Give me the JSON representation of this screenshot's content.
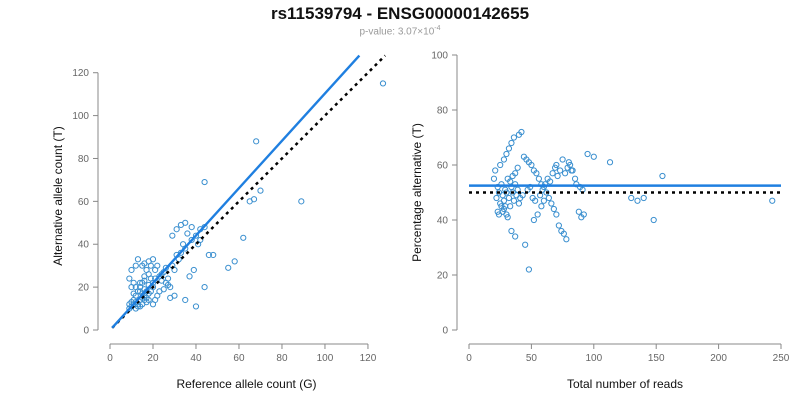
{
  "title": "rs11539794 - ENSG00000142655",
  "subtitle": {
    "prefix": "p-value: ",
    "mantissa": "3.07×10",
    "exponent": "-4"
  },
  "colors": {
    "points": "#3a8fcf",
    "fit_line": "#1f7fe0",
    "ref_line": "#000000",
    "axis": "#888888",
    "tick_text": "#666666"
  },
  "chart_data": [
    {
      "type": "scatter",
      "xlabel": "Reference allele count (G)",
      "ylabel": "Alternative allele count (T)",
      "xlim": [
        0,
        127
      ],
      "ylim": [
        0,
        125
      ],
      "xticks": [
        0,
        20,
        40,
        60,
        80,
        100,
        120
      ],
      "yticks": [
        0,
        20,
        40,
        60,
        80,
        100,
        120
      ],
      "fit_line": [
        [
          1,
          1
        ],
        [
          116,
          128
        ]
      ],
      "reference_line": [
        [
          1,
          1
        ],
        [
          128,
          128
        ]
      ],
      "points": [
        [
          9,
          10
        ],
        [
          10,
          11
        ],
        [
          11,
          12
        ],
        [
          12,
          13
        ],
        [
          13,
          11
        ],
        [
          14,
          14
        ],
        [
          15,
          15
        ],
        [
          16,
          16
        ],
        [
          17,
          15
        ],
        [
          18,
          17
        ],
        [
          15,
          17
        ],
        [
          14,
          18
        ],
        [
          16,
          19
        ],
        [
          17,
          18
        ],
        [
          19,
          18
        ],
        [
          20,
          20
        ],
        [
          16,
          14
        ],
        [
          15,
          12
        ],
        [
          13,
          12
        ],
        [
          12,
          10
        ],
        [
          11,
          14
        ],
        [
          10,
          13
        ],
        [
          9,
          12
        ],
        [
          12,
          16
        ],
        [
          13,
          18
        ],
        [
          14,
          20
        ],
        [
          15,
          22
        ],
        [
          16,
          25
        ],
        [
          17,
          28
        ],
        [
          18,
          26
        ],
        [
          19,
          24
        ],
        [
          20,
          22
        ],
        [
          21,
          28
        ],
        [
          22,
          30
        ],
        [
          23,
          25
        ],
        [
          24,
          26
        ],
        [
          25,
          27
        ],
        [
          26,
          22
        ],
        [
          27,
          24
        ],
        [
          28,
          20
        ],
        [
          29,
          30
        ],
        [
          30,
          28
        ],
        [
          31,
          35
        ],
        [
          32,
          33
        ],
        [
          33,
          36
        ],
        [
          34,
          40
        ],
        [
          35,
          38
        ],
        [
          36,
          45
        ],
        [
          38,
          42
        ],
        [
          40,
          44
        ],
        [
          42,
          47
        ],
        [
          44,
          48
        ],
        [
          46,
          35
        ],
        [
          48,
          35
        ],
        [
          12,
          30
        ],
        [
          13,
          33
        ],
        [
          10,
          20
        ],
        [
          11,
          22
        ],
        [
          9,
          24
        ],
        [
          10,
          28
        ],
        [
          15,
          30
        ],
        [
          16,
          31
        ],
        [
          18,
          32
        ],
        [
          19,
          30
        ],
        [
          20,
          33
        ],
        [
          21,
          14
        ],
        [
          22,
          16
        ],
        [
          25,
          19
        ],
        [
          27,
          21
        ],
        [
          28,
          15
        ],
        [
          30,
          16
        ],
        [
          35,
          14
        ],
        [
          40,
          11
        ],
        [
          37,
          25
        ],
        [
          39,
          28
        ],
        [
          44,
          20
        ],
        [
          29,
          44
        ],
        [
          31,
          47
        ],
        [
          33,
          49
        ],
        [
          35,
          50
        ],
        [
          38,
          48
        ],
        [
          41,
          40
        ],
        [
          42,
          42
        ],
        [
          44,
          69
        ],
        [
          55,
          29
        ],
        [
          58,
          32
        ],
        [
          62,
          43
        ],
        [
          65,
          60
        ],
        [
          67,
          61
        ],
        [
          68,
          88
        ],
        [
          70,
          65
        ],
        [
          89,
          60
        ],
        [
          127,
          115
        ],
        [
          14,
          11
        ],
        [
          17,
          13
        ],
        [
          18,
          14
        ],
        [
          20,
          12
        ],
        [
          23,
          18
        ],
        [
          26,
          29
        ],
        [
          14,
          22
        ],
        [
          16,
          23
        ],
        [
          18,
          21
        ],
        [
          21,
          24
        ],
        [
          24,
          23
        ],
        [
          11,
          17
        ],
        [
          12,
          20
        ]
      ]
    },
    {
      "type": "scatter",
      "xlabel": "Total number of reads",
      "ylabel": "Percentage alternative (T)",
      "xlim": [
        0,
        250
      ],
      "ylim": [
        0,
        100
      ],
      "xticks": [
        0,
        50,
        100,
        150,
        200,
        250
      ],
      "yticks": [
        0,
        20,
        40,
        60,
        80,
        100
      ],
      "fit_line": [
        [
          0,
          52.5
        ],
        [
          250,
          52.5
        ]
      ],
      "reference_line": [
        [
          0,
          50
        ],
        [
          250,
          50
        ]
      ],
      "points": [
        [
          20,
          55
        ],
        [
          22,
          48
        ],
        [
          23,
          52
        ],
        [
          24,
          50
        ],
        [
          25,
          46
        ],
        [
          26,
          53
        ],
        [
          27,
          49
        ],
        [
          28,
          47
        ],
        [
          29,
          51
        ],
        [
          30,
          50
        ],
        [
          31,
          55
        ],
        [
          32,
          48
        ],
        [
          33,
          45
        ],
        [
          34,
          52
        ],
        [
          35,
          50
        ],
        [
          36,
          47
        ],
        [
          37,
          53
        ],
        [
          38,
          49
        ],
        [
          39,
          51
        ],
        [
          40,
          46
        ],
        [
          21,
          58
        ],
        [
          25,
          60
        ],
        [
          28,
          62
        ],
        [
          30,
          64
        ],
        [
          32,
          66
        ],
        [
          34,
          68
        ],
        [
          36,
          70
        ],
        [
          40,
          71
        ],
        [
          42,
          72
        ],
        [
          44,
          63
        ],
        [
          46,
          62
        ],
        [
          48,
          61
        ],
        [
          50,
          60
        ],
        [
          52,
          58
        ],
        [
          54,
          57
        ],
        [
          56,
          55
        ],
        [
          58,
          53
        ],
        [
          60,
          52
        ],
        [
          62,
          50
        ],
        [
          64,
          48
        ],
        [
          66,
          46
        ],
        [
          68,
          44
        ],
        [
          70,
          42
        ],
        [
          72,
          38
        ],
        [
          74,
          36
        ],
        [
          76,
          35
        ],
        [
          78,
          33
        ],
        [
          45,
          31
        ],
        [
          48,
          22
        ],
        [
          52,
          40
        ],
        [
          55,
          42
        ],
        [
          58,
          45
        ],
        [
          60,
          47
        ],
        [
          65,
          54
        ],
        [
          70,
          60
        ],
        [
          75,
          62
        ],
        [
          80,
          61
        ],
        [
          82,
          58
        ],
        [
          85,
          55
        ],
        [
          88,
          43
        ],
        [
          90,
          41
        ],
        [
          92,
          42
        ],
        [
          95,
          64
        ],
        [
          100,
          63
        ],
        [
          113,
          61
        ],
        [
          130,
          48
        ],
        [
          135,
          47
        ],
        [
          140,
          48
        ],
        [
          148,
          40
        ],
        [
          155,
          56
        ],
        [
          243,
          47
        ],
        [
          26,
          45
        ],
        [
          27,
          43
        ],
        [
          28,
          44
        ],
        [
          30,
          42
        ],
        [
          33,
          54
        ],
        [
          35,
          56
        ],
        [
          37,
          57
        ],
        [
          39,
          59
        ],
        [
          41,
          48
        ],
        [
          43,
          49
        ],
        [
          47,
          51
        ],
        [
          49,
          52
        ],
        [
          51,
          48
        ],
        [
          53,
          47
        ],
        [
          57,
          49
        ],
        [
          59,
          51
        ],
        [
          61,
          53
        ],
        [
          63,
          55
        ],
        [
          67,
          57
        ],
        [
          69,
          59
        ],
        [
          71,
          56
        ],
        [
          73,
          58
        ],
        [
          77,
          57
        ],
        [
          79,
          59
        ],
        [
          81,
          60
        ],
        [
          83,
          58
        ],
        [
          86,
          53
        ],
        [
          89,
          52
        ],
        [
          91,
          51
        ],
        [
          24,
          42
        ],
        [
          23,
          43
        ],
        [
          29,
          45
        ],
        [
          31,
          41
        ],
        [
          34,
          36
        ],
        [
          37,
          34
        ]
      ]
    }
  ]
}
